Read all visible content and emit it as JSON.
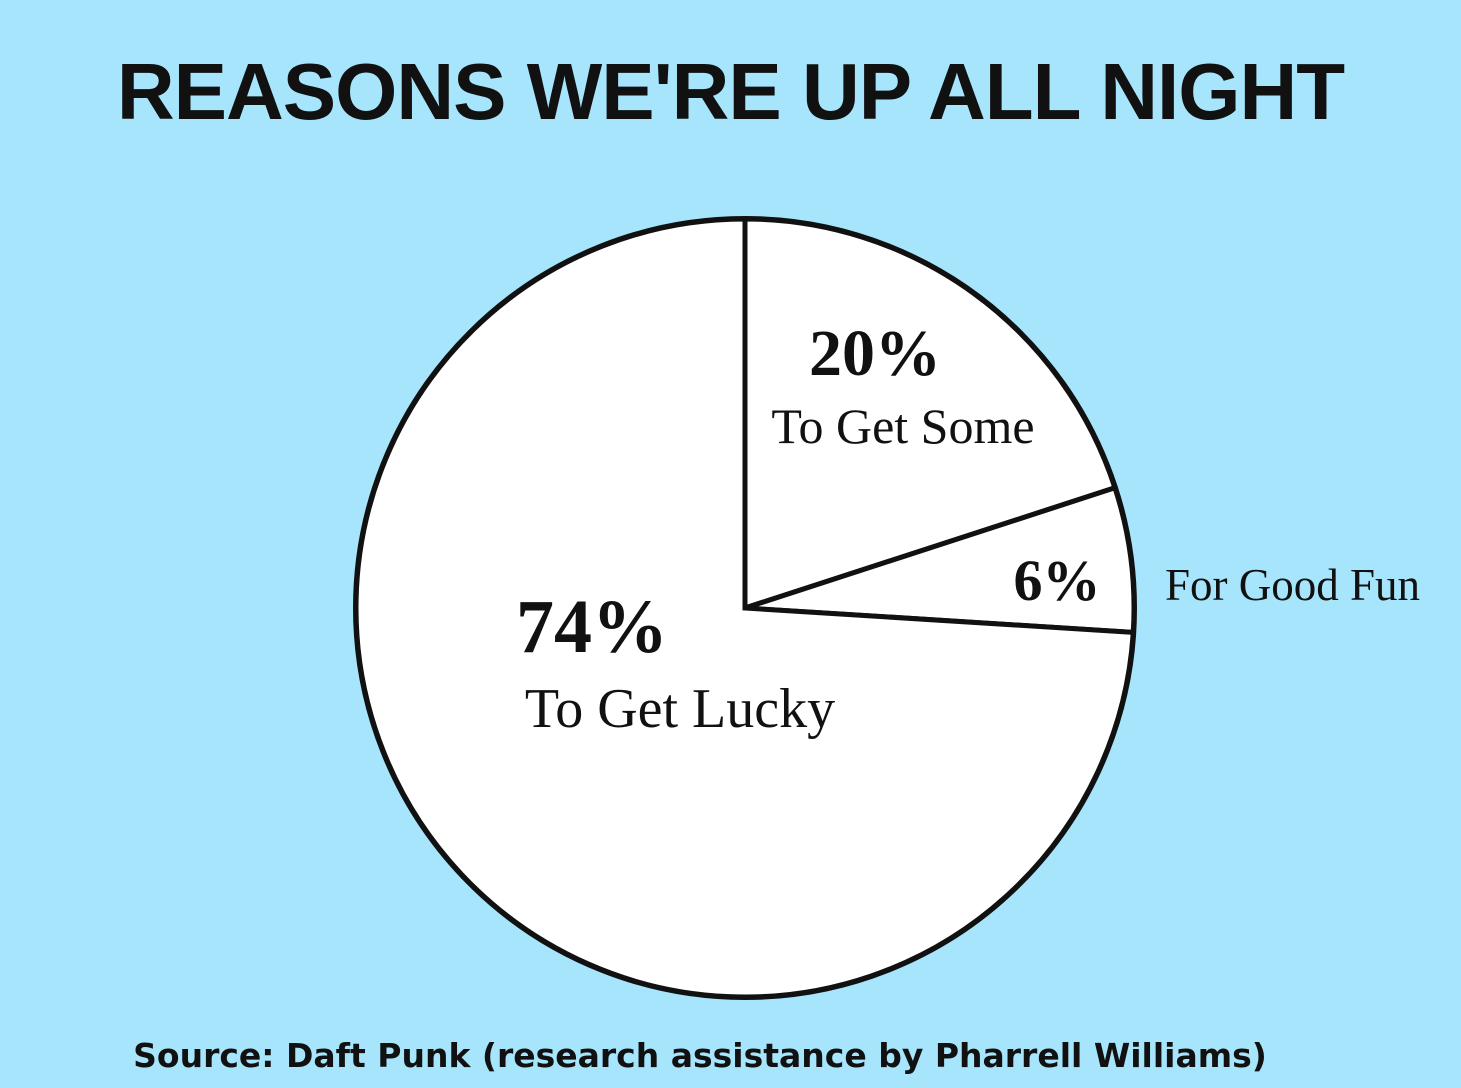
{
  "chart_data": {
    "type": "pie",
    "title": "REASONS WE'RE UP ALL NIGHT",
    "source": "Source: Daft Punk (research assistance by Pharrell Williams)",
    "slices": [
      {
        "label": "To Get Some",
        "percent_label": "20%",
        "value": 20
      },
      {
        "label": "For Good Fun",
        "percent_label": "6%",
        "value": 6
      },
      {
        "label": "To Get Lucky",
        "percent_label": "74%",
        "value": 74
      }
    ],
    "colors": {
      "background": "#a6e5fb",
      "slice_fill": "#ffffff",
      "outline": "#111111"
    }
  }
}
